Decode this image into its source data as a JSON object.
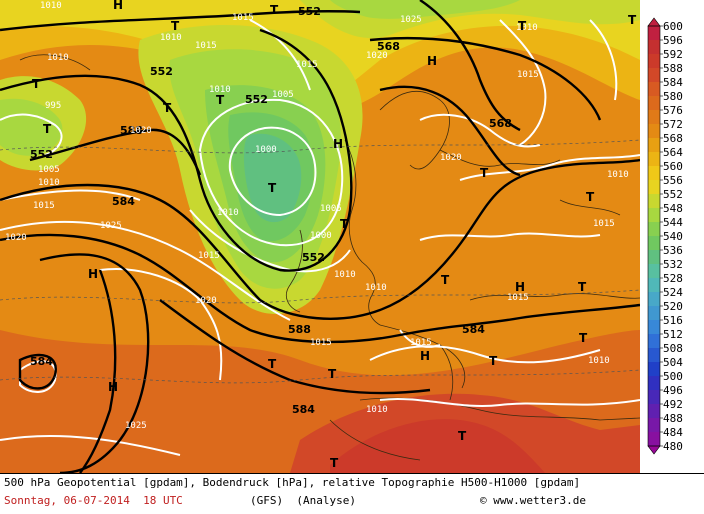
{
  "legend": {
    "values": [
      "600",
      "596",
      "592",
      "588",
      "584",
      "580",
      "576",
      "572",
      "568",
      "564",
      "560",
      "556",
      "552",
      "548",
      "544",
      "540",
      "536",
      "532",
      "528",
      "524",
      "520",
      "516",
      "512",
      "508",
      "504",
      "500",
      "496",
      "492",
      "488",
      "484",
      "480"
    ],
    "colors": [
      "#c02040",
      "#c43030",
      "#cc3a2a",
      "#d24828",
      "#d85a22",
      "#dc6a1c",
      "#e07a18",
      "#e48a14",
      "#e8a012",
      "#ecb414",
      "#f0c818",
      "#e8d420",
      "#c8d830",
      "#a8d840",
      "#88d050",
      "#70c860",
      "#60c080",
      "#58c0a0",
      "#50b8b8",
      "#48a8c8",
      "#4098d0",
      "#3888d8",
      "#3070d8",
      "#2858d0",
      "#2040c8",
      "#3030c0",
      "#4828b8",
      "#6020b0",
      "#7818a8",
      "#8810a0",
      "#980898"
    ]
  },
  "markers": {
    "high": "H",
    "low": "T"
  },
  "geopotential_labels": [
    "552",
    "552",
    "552",
    "552",
    "568",
    "568",
    "584",
    "584",
    "584",
    "584",
    "588",
    "588",
    "552"
  ],
  "pressure_labels": [
    "1010",
    "1015",
    "1010",
    "1015",
    "1010",
    "1015",
    "1020",
    "1005",
    "1000",
    "995",
    "1005",
    "1015",
    "1010",
    "1020",
    "1025",
    "1015",
    "1010",
    "1020",
    "1015",
    "1010",
    "1010",
    "1015",
    "1020",
    "1025",
    "1010",
    "1015",
    "1010",
    "1015",
    "1020",
    "1010",
    "1005",
    "1000",
    "1010",
    "1015",
    "1010",
    "1025"
  ],
  "caption": {
    "line1": "500 hPa Geopotential [gpdam], Bodendruck [hPa], relative Topographie H500-H1000 [gpdam]",
    "date": "Sonntag, 06-07-2014  18 UTC",
    "model": "(GFS)  (Analyse)",
    "credit": "© www.wetter3.de"
  }
}
